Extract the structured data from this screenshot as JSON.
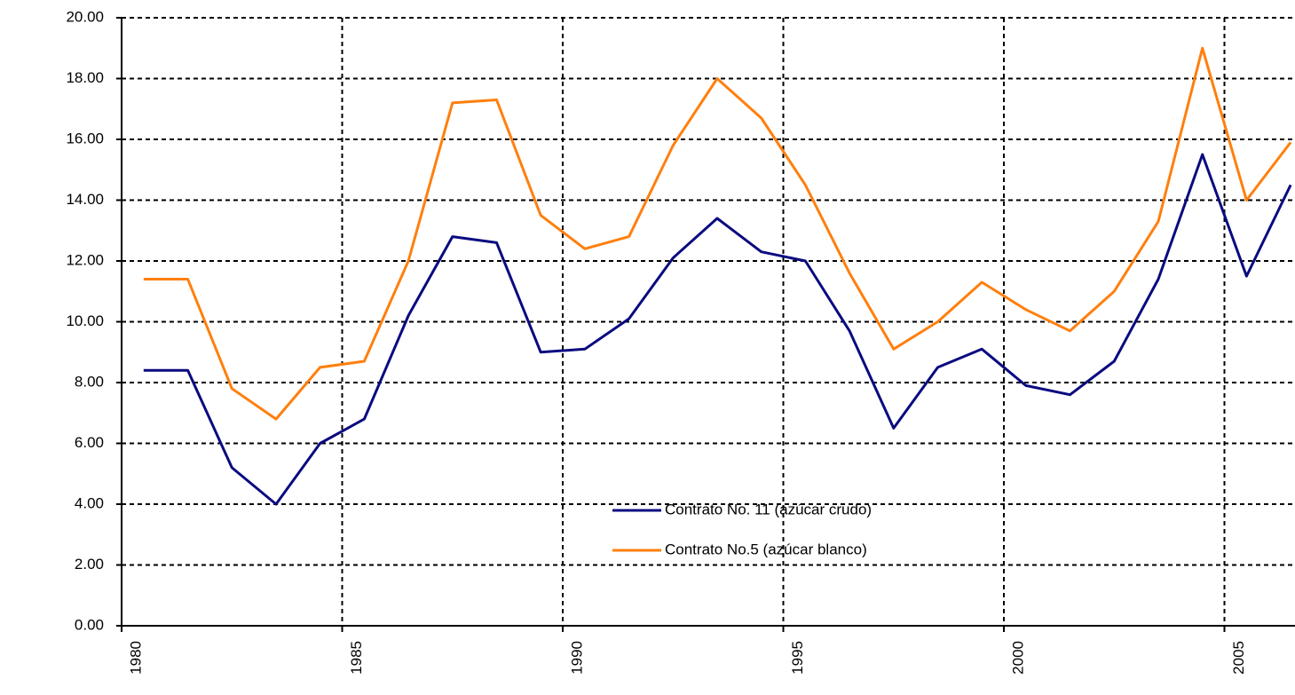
{
  "chart_data": {
    "type": "line",
    "categories": [
      "1980",
      null,
      null,
      null,
      null,
      "1985",
      null,
      null,
      null,
      null,
      "1990",
      null,
      null,
      null,
      null,
      "1995",
      null,
      null,
      null,
      null,
      "2000",
      null,
      null,
      null,
      null,
      "2005",
      null
    ],
    "series": [
      {
        "name": "Contrato No. 11 (azúcar crudo)",
        "color": "#0a0a80",
        "values": [
          8.4,
          8.4,
          5.2,
          4.0,
          6.0,
          6.8,
          10.2,
          12.8,
          12.6,
          9.0,
          9.1,
          10.1,
          12.1,
          13.4,
          12.3,
          12.0,
          9.7,
          6.5,
          8.5,
          9.1,
          7.9,
          7.6,
          8.7,
          11.4,
          15.5,
          11.5,
          14.5
        ]
      },
      {
        "name": "Contrato No.5 (azúcar blanco)",
        "color": "#ff7f0e",
        "values": [
          11.4,
          11.4,
          7.8,
          6.8,
          8.5,
          8.7,
          12.0,
          17.2,
          17.3,
          13.5,
          12.4,
          12.8,
          15.8,
          18.0,
          16.7,
          14.5,
          11.6,
          9.1,
          10.0,
          11.3,
          10.4,
          9.7,
          11.0,
          13.3,
          19.0,
          14.0,
          15.9
        ]
      }
    ],
    "ylim": [
      0,
      20
    ],
    "yticks": [
      {
        "value": 0,
        "label": "0.00"
      },
      {
        "value": 2,
        "label": "2.00"
      },
      {
        "value": 4,
        "label": "4.00"
      },
      {
        "value": 6,
        "label": "6.00"
      },
      {
        "value": 8,
        "label": "8.00"
      },
      {
        "value": 10,
        "label": "10.00"
      },
      {
        "value": 12,
        "label": "12.00"
      },
      {
        "value": 14,
        "label": "14.00"
      },
      {
        "value": 16,
        "label": "16.00"
      },
      {
        "value": 18,
        "label": "18.00"
      },
      {
        "value": 20,
        "label": "20.00"
      }
    ],
    "grid": true
  }
}
